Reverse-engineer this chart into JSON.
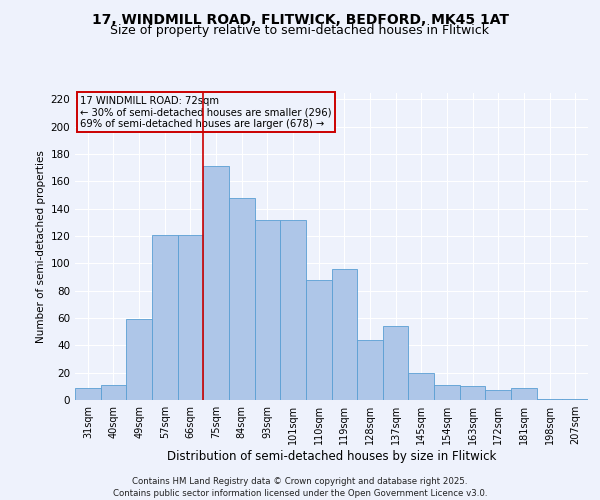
{
  "title1": "17, WINDMILL ROAD, FLITWICK, BEDFORD, MK45 1AT",
  "title2": "Size of property relative to semi-detached houses in Flitwick",
  "xlabel": "Distribution of semi-detached houses by size in Flitwick",
  "ylabel": "Number of semi-detached properties",
  "bar_labels": [
    "31sqm",
    "40sqm",
    "49sqm",
    "57sqm",
    "66sqm",
    "75sqm",
    "84sqm",
    "93sqm",
    "101sqm",
    "110sqm",
    "119sqm",
    "128sqm",
    "137sqm",
    "145sqm",
    "154sqm",
    "163sqm",
    "172sqm",
    "181sqm",
    "198sqm",
    "207sqm"
  ],
  "bar_values": [
    9,
    11,
    59,
    121,
    121,
    171,
    148,
    132,
    132,
    88,
    96,
    44,
    54,
    20,
    11,
    10,
    7,
    9,
    1,
    1
  ],
  "bar_color": "#aec6e8",
  "bar_edge_color": "#5a9fd4",
  "property_bin_index": 4,
  "annotation_title": "17 WINDMILL ROAD: 72sqm",
  "annotation_line1": "← 30% of semi-detached houses are smaller (296)",
  "annotation_line2": "69% of semi-detached houses are larger (678) →",
  "vline_color": "#cc0000",
  "annotation_box_color": "#cc0000",
  "ylim": [
    0,
    225
  ],
  "yticks": [
    0,
    20,
    40,
    60,
    80,
    100,
    120,
    140,
    160,
    180,
    200,
    220
  ],
  "footer_line1": "Contains HM Land Registry data © Crown copyright and database right 2025.",
  "footer_line2": "Contains public sector information licensed under the Open Government Licence v3.0.",
  "bg_color": "#eef2fc",
  "grid_color": "#ffffff",
  "title_fontsize": 10,
  "subtitle_fontsize": 9
}
